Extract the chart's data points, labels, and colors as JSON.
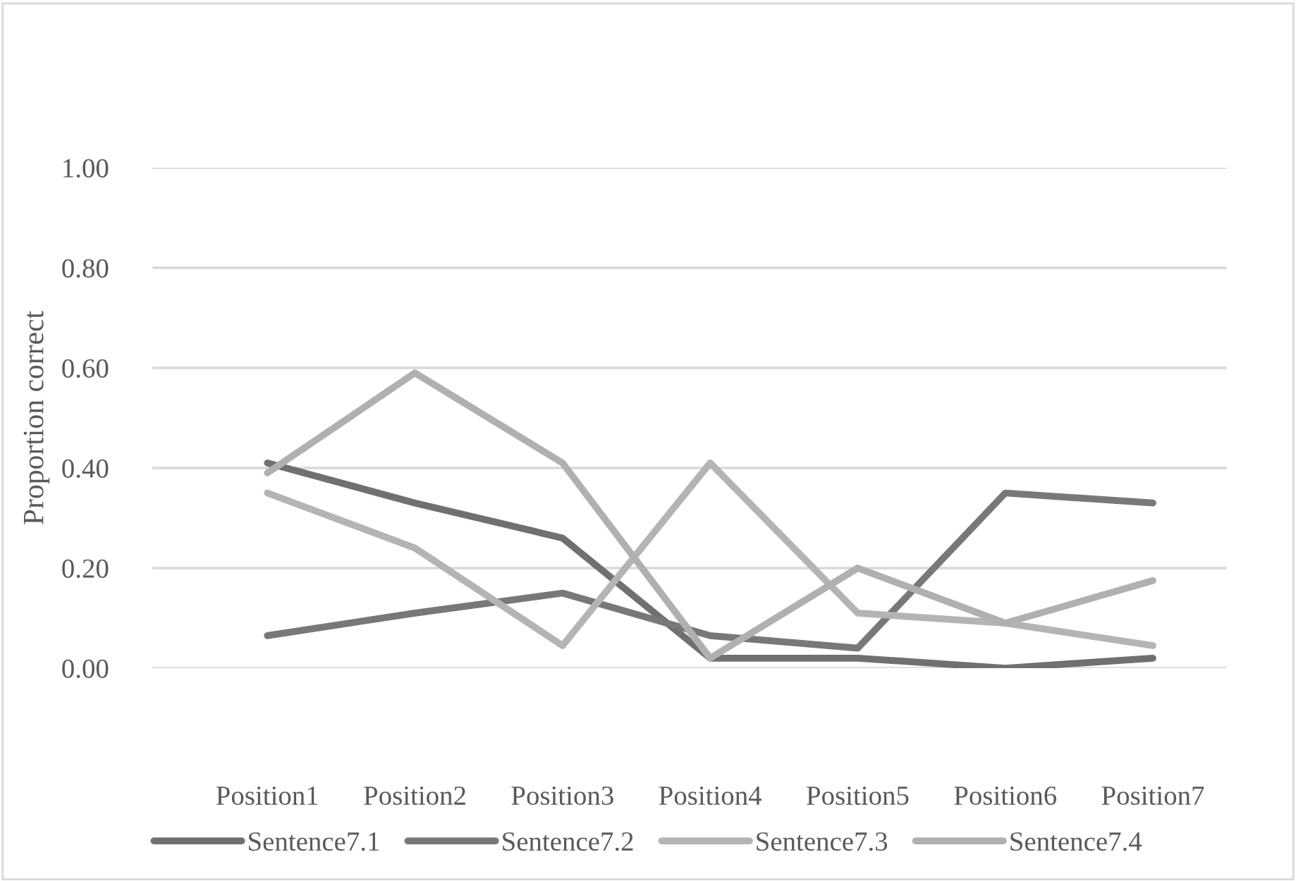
{
  "chart_data": {
    "type": "line",
    "ylabel": "Proportion correct",
    "categories": [
      "Position1",
      "Position2",
      "Position3",
      "Position4",
      "Position5",
      "Position6",
      "Position7"
    ],
    "series": [
      {
        "name": "Sentence7.1",
        "color": "#707070",
        "values": [
          0.41,
          0.33,
          0.26,
          0.02,
          0.02,
          0.0,
          0.02
        ]
      },
      {
        "name": "Sentence7.2",
        "color": "#787878",
        "values": [
          0.065,
          0.11,
          0.15,
          0.065,
          0.04,
          0.35,
          0.33
        ]
      },
      {
        "name": "Sentence7.3",
        "color": "#b4b4b8",
        "values": [
          0.35,
          0.24,
          0.045,
          0.41,
          0.11,
          0.09,
          0.045
        ]
      },
      {
        "name": "Sentence7.4",
        "color": "#b0b0b0",
        "values": [
          0.39,
          0.59,
          0.41,
          0.02,
          0.2,
          0.09,
          0.175
        ]
      }
    ],
    "ylim": [
      0,
      1
    ],
    "yticks": [
      {
        "value": 0,
        "label": "0.00"
      },
      {
        "value": 0.2,
        "label": "0.20"
      },
      {
        "value": 0.4,
        "label": "0.40"
      },
      {
        "value": 0.6,
        "label": "0.60"
      },
      {
        "value": 0.8,
        "label": "0.80"
      },
      {
        "value": 1,
        "label": "1.00"
      }
    ],
    "grid": "y",
    "legend": "bottom",
    "marker": "none",
    "line_style": "solid"
  }
}
